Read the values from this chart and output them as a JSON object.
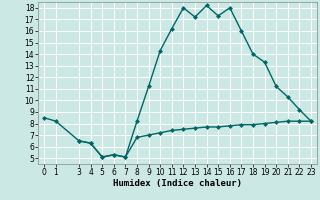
{
  "title": "",
  "xlabel": "Humidex (Indice chaleur)",
  "ylabel": "",
  "bg_color": "#cce8e4",
  "grid_color": "#ffffff",
  "line_color": "#006666",
  "line1_x": [
    0,
    1,
    3,
    4,
    5,
    6,
    7,
    8,
    9,
    10,
    11,
    12,
    13,
    14,
    15,
    16,
    17,
    18,
    19,
    20,
    21,
    22,
    23
  ],
  "line1_y": [
    8.5,
    8.2,
    6.5,
    6.3,
    5.1,
    5.3,
    5.1,
    8.2,
    11.2,
    14.3,
    16.2,
    18.0,
    17.2,
    18.2,
    17.3,
    18.0,
    16.0,
    14.0,
    13.3,
    11.2,
    10.3,
    9.2,
    8.2
  ],
  "line2_x": [
    3,
    4,
    5,
    6,
    7,
    8,
    9,
    10,
    11,
    12,
    13,
    14,
    15,
    16,
    17,
    18,
    19,
    20,
    21,
    22,
    23
  ],
  "line2_y": [
    6.5,
    6.3,
    5.1,
    5.3,
    5.1,
    6.8,
    7.0,
    7.2,
    7.4,
    7.5,
    7.6,
    7.7,
    7.7,
    7.8,
    7.9,
    7.9,
    8.0,
    8.1,
    8.2,
    8.2,
    8.2
  ],
  "xlim": [
    -0.5,
    23.5
  ],
  "ylim": [
    4.5,
    18.5
  ],
  "yticks": [
    5,
    6,
    7,
    8,
    9,
    10,
    11,
    12,
    13,
    14,
    15,
    16,
    17,
    18
  ],
  "xticks": [
    0,
    1,
    3,
    4,
    5,
    6,
    7,
    8,
    9,
    10,
    11,
    12,
    13,
    14,
    15,
    16,
    17,
    18,
    19,
    20,
    21,
    22,
    23
  ],
  "marker": "D",
  "markersize": 2.0,
  "linewidth": 1.0,
  "xlabel_fontsize": 6.5,
  "tick_fontsize": 5.5
}
